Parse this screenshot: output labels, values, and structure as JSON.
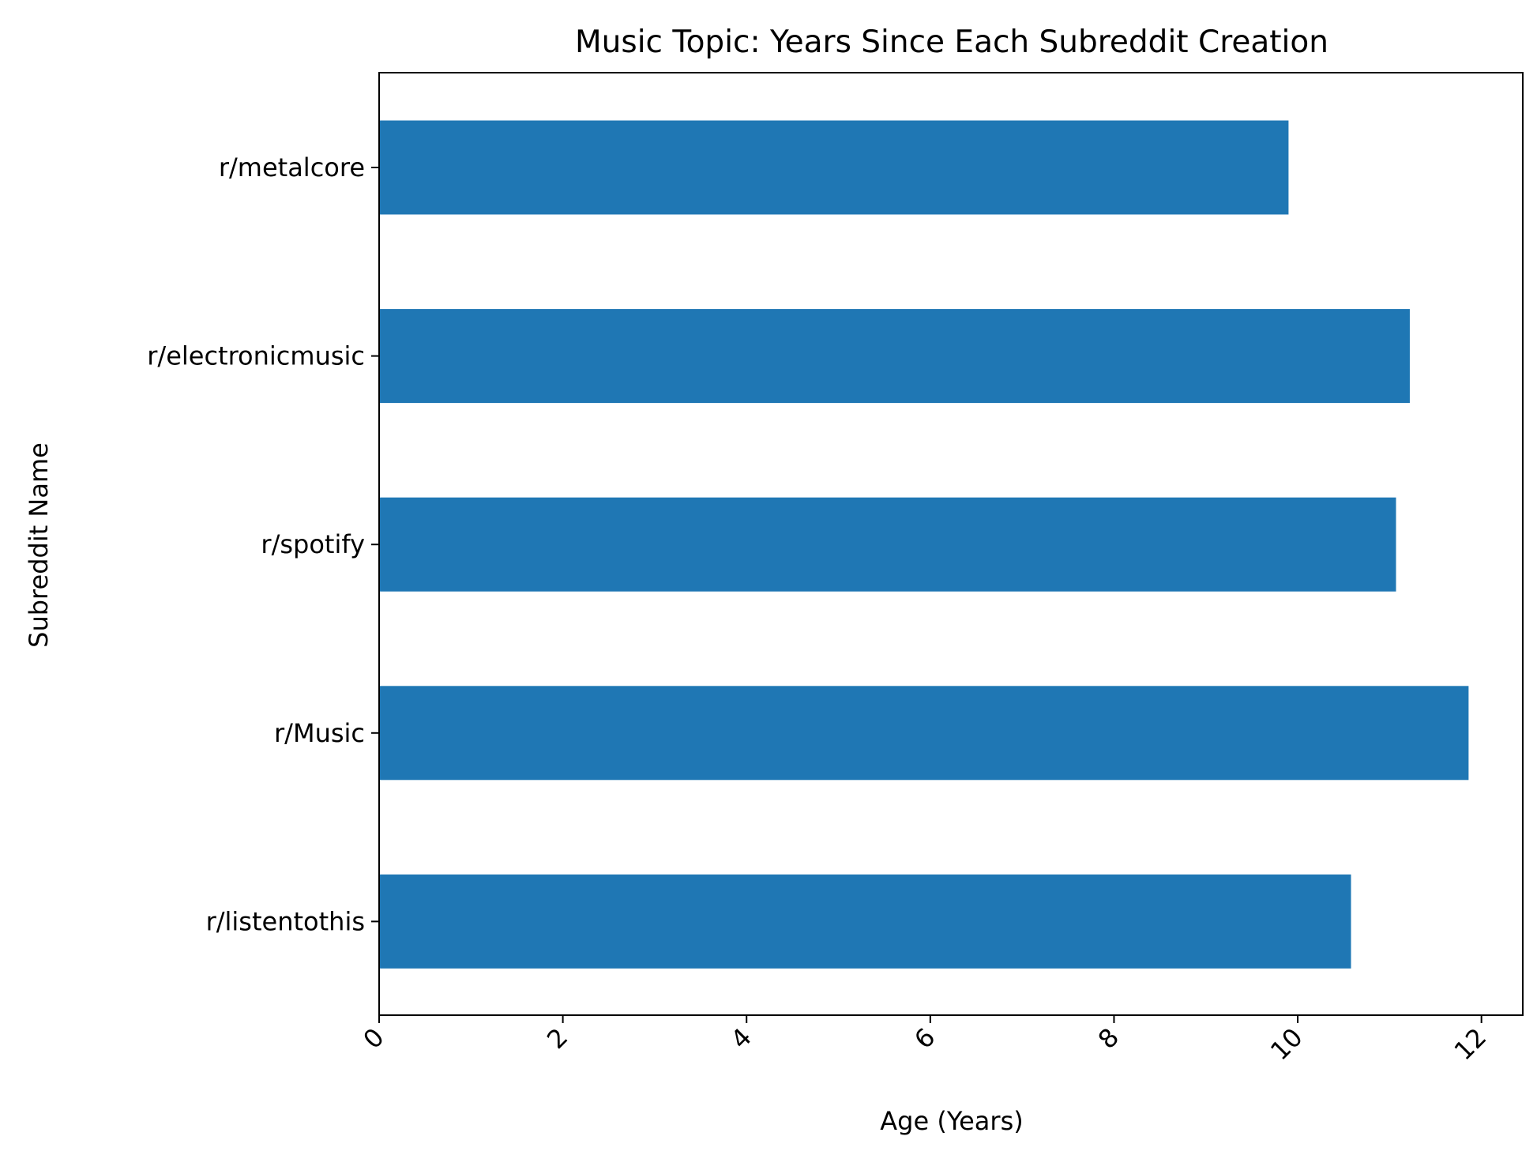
{
  "chart_data": {
    "type": "bar",
    "orientation": "horizontal",
    "title": "Music Topic: Years Since Each Subreddit Creation",
    "xlabel": "Age (Years)",
    "ylabel": "Subreddit Name",
    "categories": [
      "r/metalcore",
      "r/electronicmusic",
      "r/spotify",
      "r/Music",
      "r/listentothis"
    ],
    "values": [
      9.9,
      11.22,
      11.07,
      11.86,
      10.58
    ],
    "xlim": [
      0,
      12.45
    ],
    "xticks": [
      0,
      2,
      4,
      6,
      8,
      10,
      12
    ],
    "xtick_labels": [
      "0",
      "2",
      "4",
      "6",
      "8",
      "10",
      "12"
    ],
    "xtick_rotation": 45,
    "grid": false,
    "legend": "none",
    "bar_color": "#1f77b4"
  }
}
